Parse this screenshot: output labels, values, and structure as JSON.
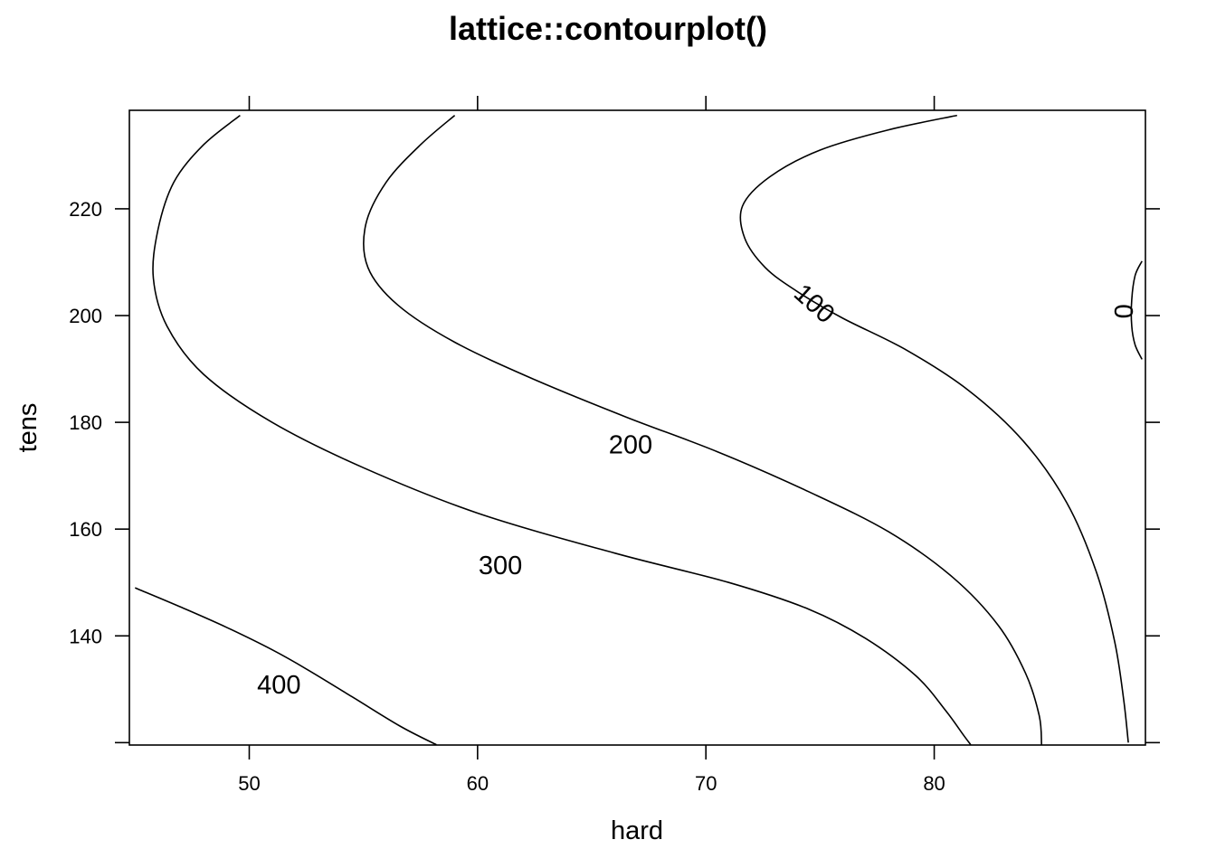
{
  "chart_data": {
    "type": "contour",
    "title": "lattice::contourplot()",
    "xlabel": "hard",
    "ylabel": "tens",
    "xlim": [
      44.75,
      89.25
    ],
    "ylim": [
      119.55,
      238.45
    ],
    "x_ticks": [
      50,
      60,
      70,
      80
    ],
    "y_ticks": [
      140,
      160,
      180,
      200,
      220
    ],
    "y_bottom_tick": 120,
    "contours": [
      {
        "level": "400",
        "label_at": [
          51.3,
          130.5
        ],
        "label_angle": 0,
        "points": [
          [
            45.0,
            149.0
          ],
          [
            47.0,
            145.4
          ],
          [
            49.0,
            141.6
          ],
          [
            51.0,
            137.4
          ],
          [
            52.5,
            133.8
          ],
          [
            54.5,
            128.6
          ],
          [
            56.6,
            123.1
          ],
          [
            58.2,
            119.6
          ]
        ]
      },
      {
        "level": "300",
        "label_at": [
          61.0,
          152.9
        ],
        "label_angle": 0,
        "points": [
          [
            49.6,
            237.5
          ],
          [
            48.0,
            232.0
          ],
          [
            46.7,
            225.0
          ],
          [
            46.0,
            216.0
          ],
          [
            45.8,
            207.0
          ],
          [
            46.4,
            198.0
          ],
          [
            48.0,
            189.0
          ],
          [
            51.0,
            180.0
          ],
          [
            55.0,
            171.5
          ],
          [
            60.0,
            163.0
          ],
          [
            66.0,
            155.5
          ],
          [
            71.0,
            150.0
          ],
          [
            74.5,
            145.0
          ],
          [
            77.0,
            139.5
          ],
          [
            79.2,
            132.5
          ],
          [
            80.5,
            126.0
          ],
          [
            81.3,
            121.3
          ],
          [
            81.6,
            119.6
          ]
        ]
      },
      {
        "level": "200",
        "label_at": [
          66.7,
          175.5
        ],
        "label_angle": 0,
        "points": [
          [
            59.0,
            237.5
          ],
          [
            57.5,
            232.0
          ],
          [
            56.0,
            225.0
          ],
          [
            55.1,
            217.0
          ],
          [
            55.2,
            209.0
          ],
          [
            56.5,
            202.0
          ],
          [
            59.0,
            195.0
          ],
          [
            62.5,
            188.0
          ],
          [
            66.5,
            181.0
          ],
          [
            70.5,
            174.5
          ],
          [
            74.5,
            167.0
          ],
          [
            78.0,
            159.5
          ],
          [
            80.8,
            151.0
          ],
          [
            82.8,
            142.0
          ],
          [
            84.0,
            133.0
          ],
          [
            84.6,
            125.0
          ],
          [
            84.7,
            119.6
          ]
        ]
      },
      {
        "level": "100",
        "label_at": [
          74.7,
          202.0
        ],
        "label_angle": 42,
        "points": [
          [
            81.0,
            237.5
          ],
          [
            78.0,
            234.8
          ],
          [
            75.0,
            231.0
          ],
          [
            72.8,
            226.0
          ],
          [
            71.6,
            220.5
          ],
          [
            71.7,
            214.5
          ],
          [
            72.6,
            209.0
          ],
          [
            74.0,
            204.5
          ],
          [
            76.0,
            199.5
          ],
          [
            78.8,
            193.5
          ],
          [
            81.5,
            186.0
          ],
          [
            83.9,
            176.5
          ],
          [
            85.8,
            165.0
          ],
          [
            87.1,
            152.0
          ],
          [
            87.9,
            139.0
          ],
          [
            88.3,
            128.0
          ],
          [
            88.5,
            120.0
          ]
        ]
      },
      {
        "level": "0",
        "label_at": [
          88.4,
          200.8
        ],
        "label_angle": -90,
        "points": [
          [
            89.1,
            210.2
          ],
          [
            88.8,
            207.5
          ],
          [
            88.65,
            203.0
          ],
          [
            88.65,
            198.0
          ],
          [
            88.8,
            194.5
          ],
          [
            89.1,
            191.8
          ]
        ]
      }
    ],
    "grid": false,
    "legend": "none"
  }
}
